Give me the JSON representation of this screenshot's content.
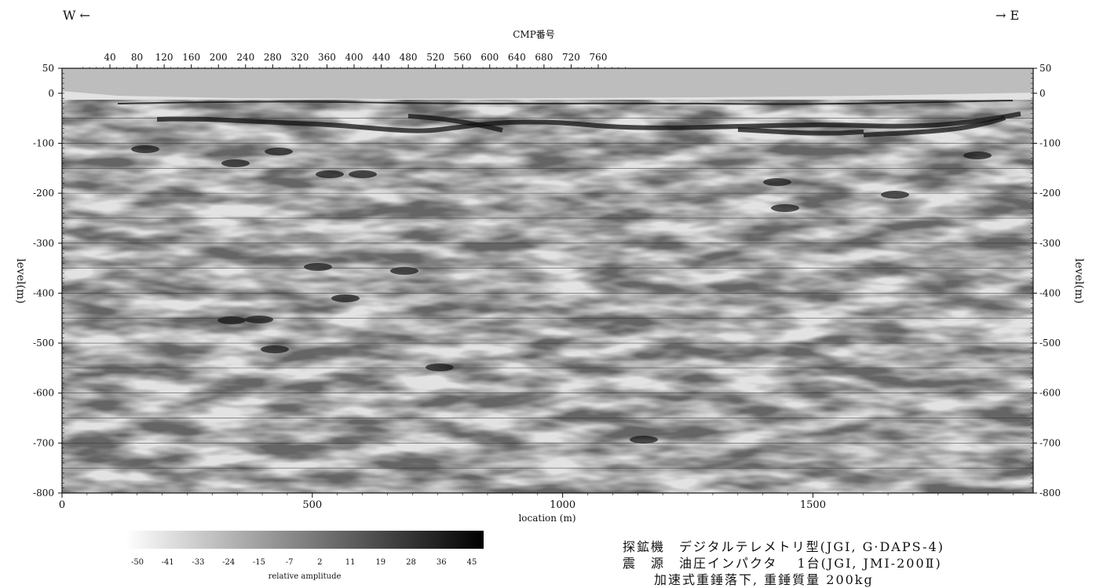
{
  "header": {
    "west_label": "W ←",
    "east_label": "→ E",
    "cmp_axis_label": "CMP番号"
  },
  "axes": {
    "left_label": "level(m)",
    "right_label": "level(m)",
    "bottom_label": "location (m)"
  },
  "colorbar": {
    "label": "relative amplitude",
    "ticks": [
      "-50",
      "-41",
      "-33",
      "-24",
      "-15",
      "-7",
      "2",
      "11",
      "19",
      "28",
      "36",
      "45"
    ]
  },
  "info": {
    "line1": "探鉱機　デジタルテレメトリ型(JGI, G·DAPS-4)",
    "line2": "震　源　油圧インパクタ　 1台(JGI, JMI-200Ⅱ)",
    "line3": "加速式重錘落下, 重錘質量 200kg"
  },
  "chart_data": {
    "type": "heatmap",
    "title": "",
    "xlabel": "location (m)",
    "ylabel": "level(m)",
    "x_range": [
      0,
      1940
    ],
    "y_range": [
      -800,
      50
    ],
    "x_ticks": [
      0,
      500,
      1000,
      1500
    ],
    "y_ticks": [
      50,
      0,
      -100,
      -200,
      -300,
      -400,
      -500,
      -600,
      -700,
      -800
    ],
    "y_gridlines": [
      -50,
      -100,
      -150,
      -200,
      -250,
      -300,
      -350,
      -400,
      -450,
      -500,
      -550,
      -600,
      -650,
      -700,
      -750
    ],
    "top_axis": {
      "label": "CMP番号",
      "ticks": [
        40,
        80,
        120,
        160,
        200,
        240,
        280,
        320,
        360,
        400,
        440,
        480,
        520,
        560,
        600,
        640,
        680,
        720,
        760
      ]
    },
    "colorscale": {
      "label": "relative amplitude",
      "min": -50,
      "max": 50,
      "colors": [
        "#ffffff",
        "#000000"
      ]
    }
  }
}
